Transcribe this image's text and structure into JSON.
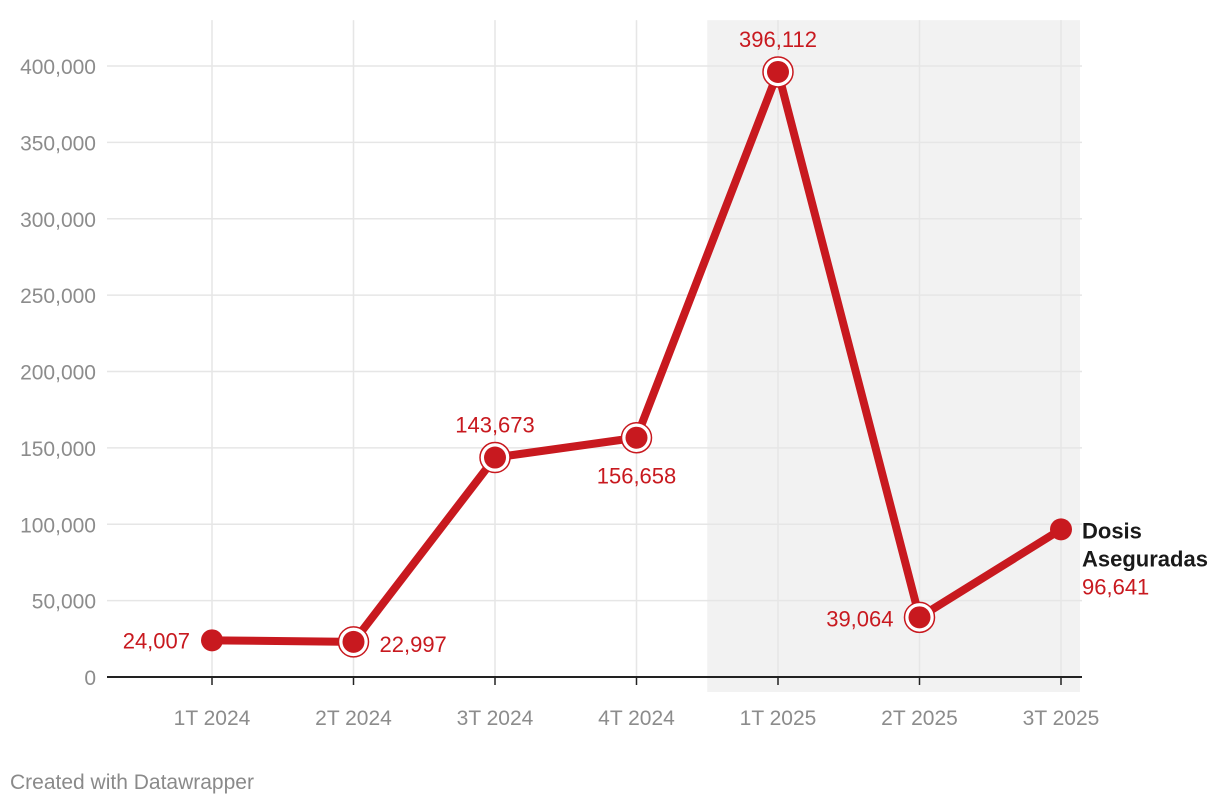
{
  "chart_data": {
    "type": "line",
    "categories": [
      "1T 2024",
      "2T 2024",
      "3T 2024",
      "4T 2024",
      "1T 2025",
      "2T 2025",
      "3T 2025"
    ],
    "series": [
      {
        "name": "Dosis Aseguradas",
        "values": [
          24007,
          22997,
          143673,
          156658,
          396112,
          39064,
          96641
        ],
        "labels": [
          "24,007",
          "22,997",
          "143,673",
          "156,658",
          "396,112",
          "39,064",
          "96,641"
        ]
      }
    ],
    "yticks": [
      0,
      50000,
      100000,
      150000,
      200000,
      250000,
      300000,
      350000,
      400000
    ],
    "ytick_labels": [
      "0",
      "50,000",
      "100,000",
      "150,000",
      "200,000",
      "250,000",
      "300,000",
      "350,000",
      "400,000"
    ],
    "ylim": [
      0,
      430000
    ],
    "highlight_range": [
      "1T 2025",
      "3T 2025"
    ],
    "grid": true,
    "series_label_lines": [
      "Dosis",
      "Aseguradas"
    ],
    "title": "",
    "xlabel": "",
    "ylabel": ""
  },
  "colors": {
    "line": "#c8191f",
    "highlight": "#f2f2f2",
    "grid": "#e6e6e6",
    "tick_text": "#8c8c8c",
    "label_text": "#c8191f",
    "series_name_text": "#1a1a1a"
  },
  "footer": "Created with Datawrapper"
}
